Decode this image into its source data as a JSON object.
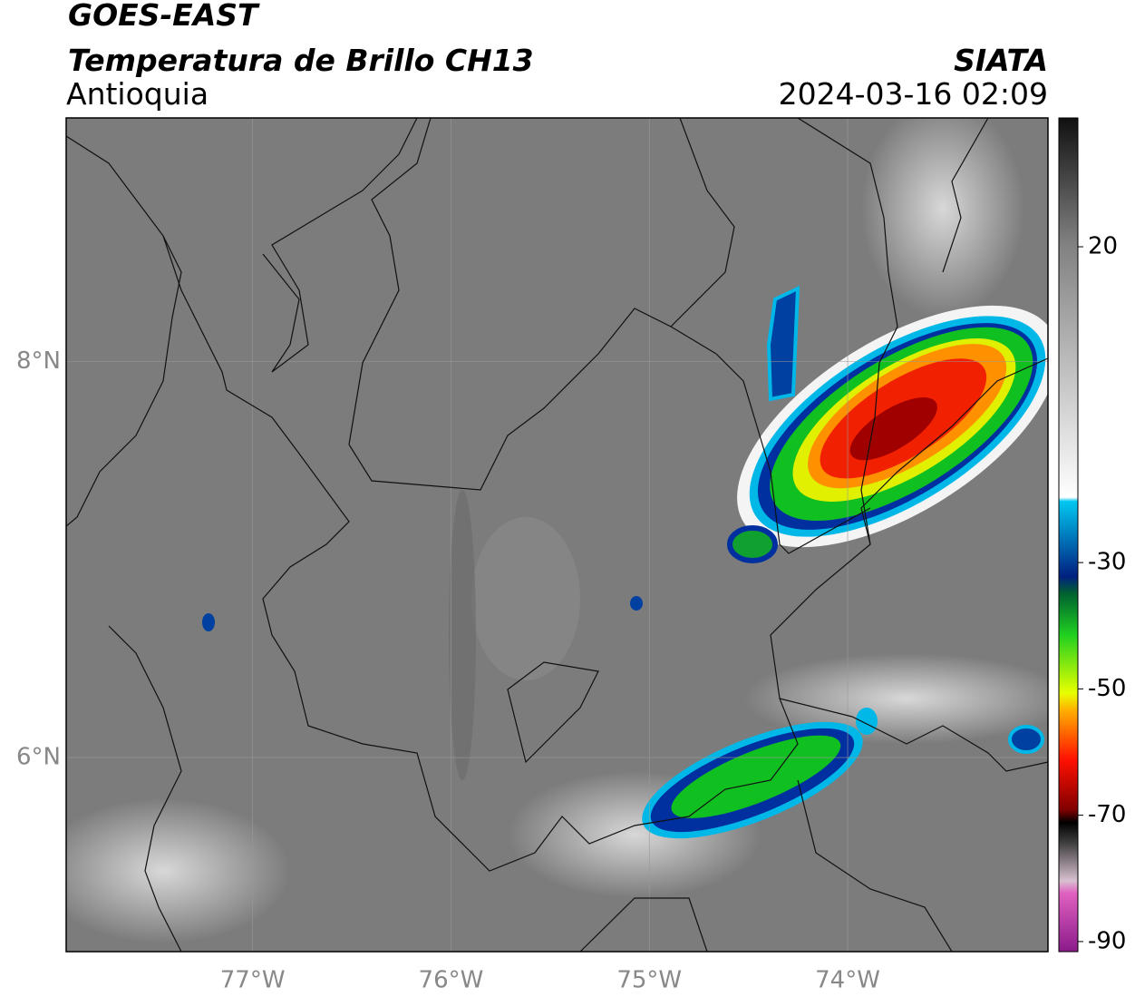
{
  "header": {
    "satellite": "GOES-EAST",
    "product": "Temperatura de Brillo CH13",
    "region": "Antioquia",
    "source": "SIATA",
    "datetime": "2024-03-16 02:09"
  },
  "map": {
    "xlim": [
      -77.94,
      -72.99
    ],
    "ylim": [
      5.02,
      9.23
    ],
    "xticks": [
      {
        "value": -77,
        "label": "77°W"
      },
      {
        "value": -76,
        "label": "76°W"
      },
      {
        "value": -75,
        "label": "75°W"
      },
      {
        "value": -74,
        "label": "74°W"
      }
    ],
    "yticks": [
      {
        "value": 6,
        "label": "6°N"
      },
      {
        "value": 8,
        "label": "8°N"
      }
    ],
    "grid": true
  },
  "colorbar": {
    "clim": [
      -91.6,
      40.4
    ],
    "ticks": [
      -90,
      -70,
      -50,
      -30,
      20
    ]
  }
}
